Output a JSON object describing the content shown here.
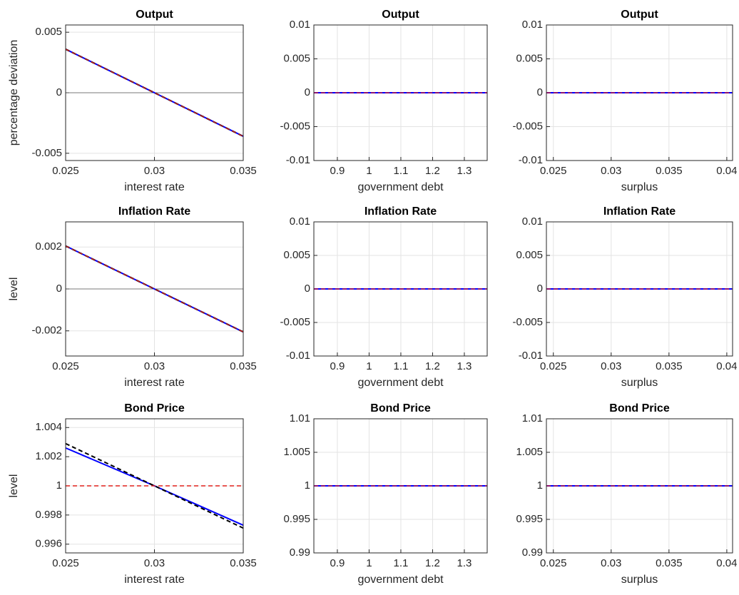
{
  "chart_data": [
    {
      "type": "line",
      "title": "Output",
      "xlabel": "interest rate",
      "ylabel": "percentage deviation",
      "x": [
        0.025,
        0.03,
        0.035
      ],
      "xlim": [
        0.025,
        0.035
      ],
      "ylim": [
        -0.0056,
        0.0056
      ],
      "xticks": [
        0.025,
        0.03,
        0.035
      ],
      "yticks": [
        -0.005,
        0,
        0.005
      ],
      "grid": true,
      "series": [
        {
          "color": "#555555",
          "style": "solid",
          "width": 0.8,
          "values": [
            0,
            0,
            0
          ]
        },
        {
          "color": "#0000ff",
          "style": "solid",
          "width": 2,
          "values": [
            0.0036,
            0,
            -0.0036
          ]
        },
        {
          "color": "#000000",
          "style": "dashed",
          "width": 2,
          "values": [
            0.0036,
            0,
            -0.0036
          ]
        },
        {
          "color": "#e0201b",
          "style": "dashed",
          "width": 1.2,
          "values": [
            0.0036,
            0,
            -0.0036
          ]
        }
      ]
    },
    {
      "type": "line",
      "title": "Output",
      "xlabel": "government debt",
      "x": [
        0.826,
        1.372
      ],
      "xlim": [
        0.826,
        1.372
      ],
      "ylim": [
        -0.01,
        0.01
      ],
      "xticks": [
        0.9,
        1,
        1.1,
        1.2,
        1.3
      ],
      "yticks": [
        -0.01,
        -0.005,
        0,
        0.005,
        0.01
      ],
      "grid": true,
      "series": [
        {
          "color": "#0000ff",
          "style": "solid",
          "width": 2,
          "values": [
            0,
            0
          ]
        },
        {
          "color": "#e0201b",
          "style": "dashed",
          "width": 1.2,
          "values": [
            0,
            0
          ]
        }
      ]
    },
    {
      "type": "line",
      "title": "Output",
      "xlabel": "surplus",
      "x": [
        0.0244,
        0.0405
      ],
      "xlim": [
        0.0244,
        0.0405
      ],
      "ylim": [
        -0.01,
        0.01
      ],
      "xticks": [
        0.025,
        0.03,
        0.035,
        0.04
      ],
      "yticks": [
        -0.01,
        -0.005,
        0,
        0.005,
        0.01
      ],
      "grid": true,
      "series": [
        {
          "color": "#0000ff",
          "style": "solid",
          "width": 2,
          "values": [
            0,
            0
          ]
        },
        {
          "color": "#e0201b",
          "style": "dashed",
          "width": 1.2,
          "values": [
            0,
            0
          ]
        }
      ]
    },
    {
      "type": "line",
      "title": "Inflation Rate",
      "xlabel": "interest rate",
      "ylabel": "level",
      "x": [
        0.025,
        0.03,
        0.035
      ],
      "xlim": [
        0.025,
        0.035
      ],
      "ylim": [
        -0.0032,
        0.0032
      ],
      "xticks": [
        0.025,
        0.03,
        0.035
      ],
      "yticks": [
        -0.002,
        0,
        0.002
      ],
      "grid": true,
      "series": [
        {
          "color": "#555555",
          "style": "solid",
          "width": 0.8,
          "values": [
            0,
            0,
            0
          ]
        },
        {
          "color": "#0000ff",
          "style": "solid",
          "width": 2,
          "values": [
            0.00205,
            0,
            -0.00205
          ]
        },
        {
          "color": "#000000",
          "style": "dashed",
          "width": 2,
          "values": [
            0.00205,
            0,
            -0.00205
          ]
        },
        {
          "color": "#e0201b",
          "style": "dashed",
          "width": 1.2,
          "values": [
            0.00205,
            0,
            -0.00205
          ]
        }
      ]
    },
    {
      "type": "line",
      "title": "Inflation Rate",
      "xlabel": "government debt",
      "x": [
        0.826,
        1.372
      ],
      "xlim": [
        0.826,
        1.372
      ],
      "ylim": [
        -0.01,
        0.01
      ],
      "xticks": [
        0.9,
        1,
        1.1,
        1.2,
        1.3
      ],
      "yticks": [
        -0.01,
        -0.005,
        0,
        0.005,
        0.01
      ],
      "grid": true,
      "series": [
        {
          "color": "#0000ff",
          "style": "solid",
          "width": 2,
          "values": [
            0,
            0
          ]
        },
        {
          "color": "#e0201b",
          "style": "dashed",
          "width": 1.2,
          "values": [
            0,
            0
          ]
        }
      ]
    },
    {
      "type": "line",
      "title": "Inflation Rate",
      "xlabel": "surplus",
      "x": [
        0.0244,
        0.0405
      ],
      "xlim": [
        0.0244,
        0.0405
      ],
      "ylim": [
        -0.01,
        0.01
      ],
      "xticks": [
        0.025,
        0.03,
        0.035,
        0.04
      ],
      "yticks": [
        -0.01,
        -0.005,
        0,
        0.005,
        0.01
      ],
      "grid": true,
      "series": [
        {
          "color": "#0000ff",
          "style": "solid",
          "width": 2,
          "values": [
            0,
            0
          ]
        },
        {
          "color": "#e0201b",
          "style": "dashed",
          "width": 1.2,
          "values": [
            0,
            0
          ]
        }
      ]
    },
    {
      "type": "line",
      "title": "Bond Price",
      "xlabel": "interest rate",
      "ylabel": "level",
      "x": [
        0.025,
        0.03,
        0.035
      ],
      "xlim": [
        0.025,
        0.035
      ],
      "ylim": [
        0.9954,
        1.0046
      ],
      "xticks": [
        0.025,
        0.03,
        0.035
      ],
      "yticks": [
        0.996,
        0.998,
        1,
        1.002,
        1.004
      ],
      "grid": true,
      "series": [
        {
          "color": "#0000ff",
          "style": "solid",
          "width": 2,
          "values": [
            1.0026,
            1,
            0.9973
          ]
        },
        {
          "color": "#000000",
          "style": "dashed",
          "width": 2,
          "values": [
            1.0029,
            1,
            0.9971
          ]
        },
        {
          "color": "#e0201b",
          "style": "dashed",
          "width": 1.5,
          "values": [
            1,
            1,
            1
          ]
        }
      ]
    },
    {
      "type": "line",
      "title": "Bond Price",
      "xlabel": "government debt",
      "x": [
        0.826,
        1.372
      ],
      "xlim": [
        0.826,
        1.372
      ],
      "ylim": [
        0.99,
        1.01
      ],
      "xticks": [
        0.9,
        1,
        1.1,
        1.2,
        1.3
      ],
      "yticks": [
        0.99,
        0.995,
        1,
        1.005,
        1.01
      ],
      "grid": true,
      "series": [
        {
          "color": "#0000ff",
          "style": "solid",
          "width": 2,
          "values": [
            1,
            1
          ]
        },
        {
          "color": "#e0201b",
          "style": "dashed",
          "width": 1.2,
          "values": [
            1,
            1
          ]
        }
      ]
    },
    {
      "type": "line",
      "title": "Bond Price",
      "xlabel": "surplus",
      "x": [
        0.0244,
        0.0405
      ],
      "xlim": [
        0.0244,
        0.0405
      ],
      "ylim": [
        0.99,
        1.01
      ],
      "xticks": [
        0.025,
        0.03,
        0.035,
        0.04
      ],
      "yticks": [
        0.99,
        0.995,
        1,
        1.005,
        1.01
      ],
      "grid": true,
      "series": [
        {
          "color": "#0000ff",
          "style": "solid",
          "width": 2,
          "values": [
            1,
            1
          ]
        },
        {
          "color": "#e0201b",
          "style": "dashed",
          "width": 1.2,
          "values": [
            1,
            1
          ]
        }
      ]
    }
  ]
}
